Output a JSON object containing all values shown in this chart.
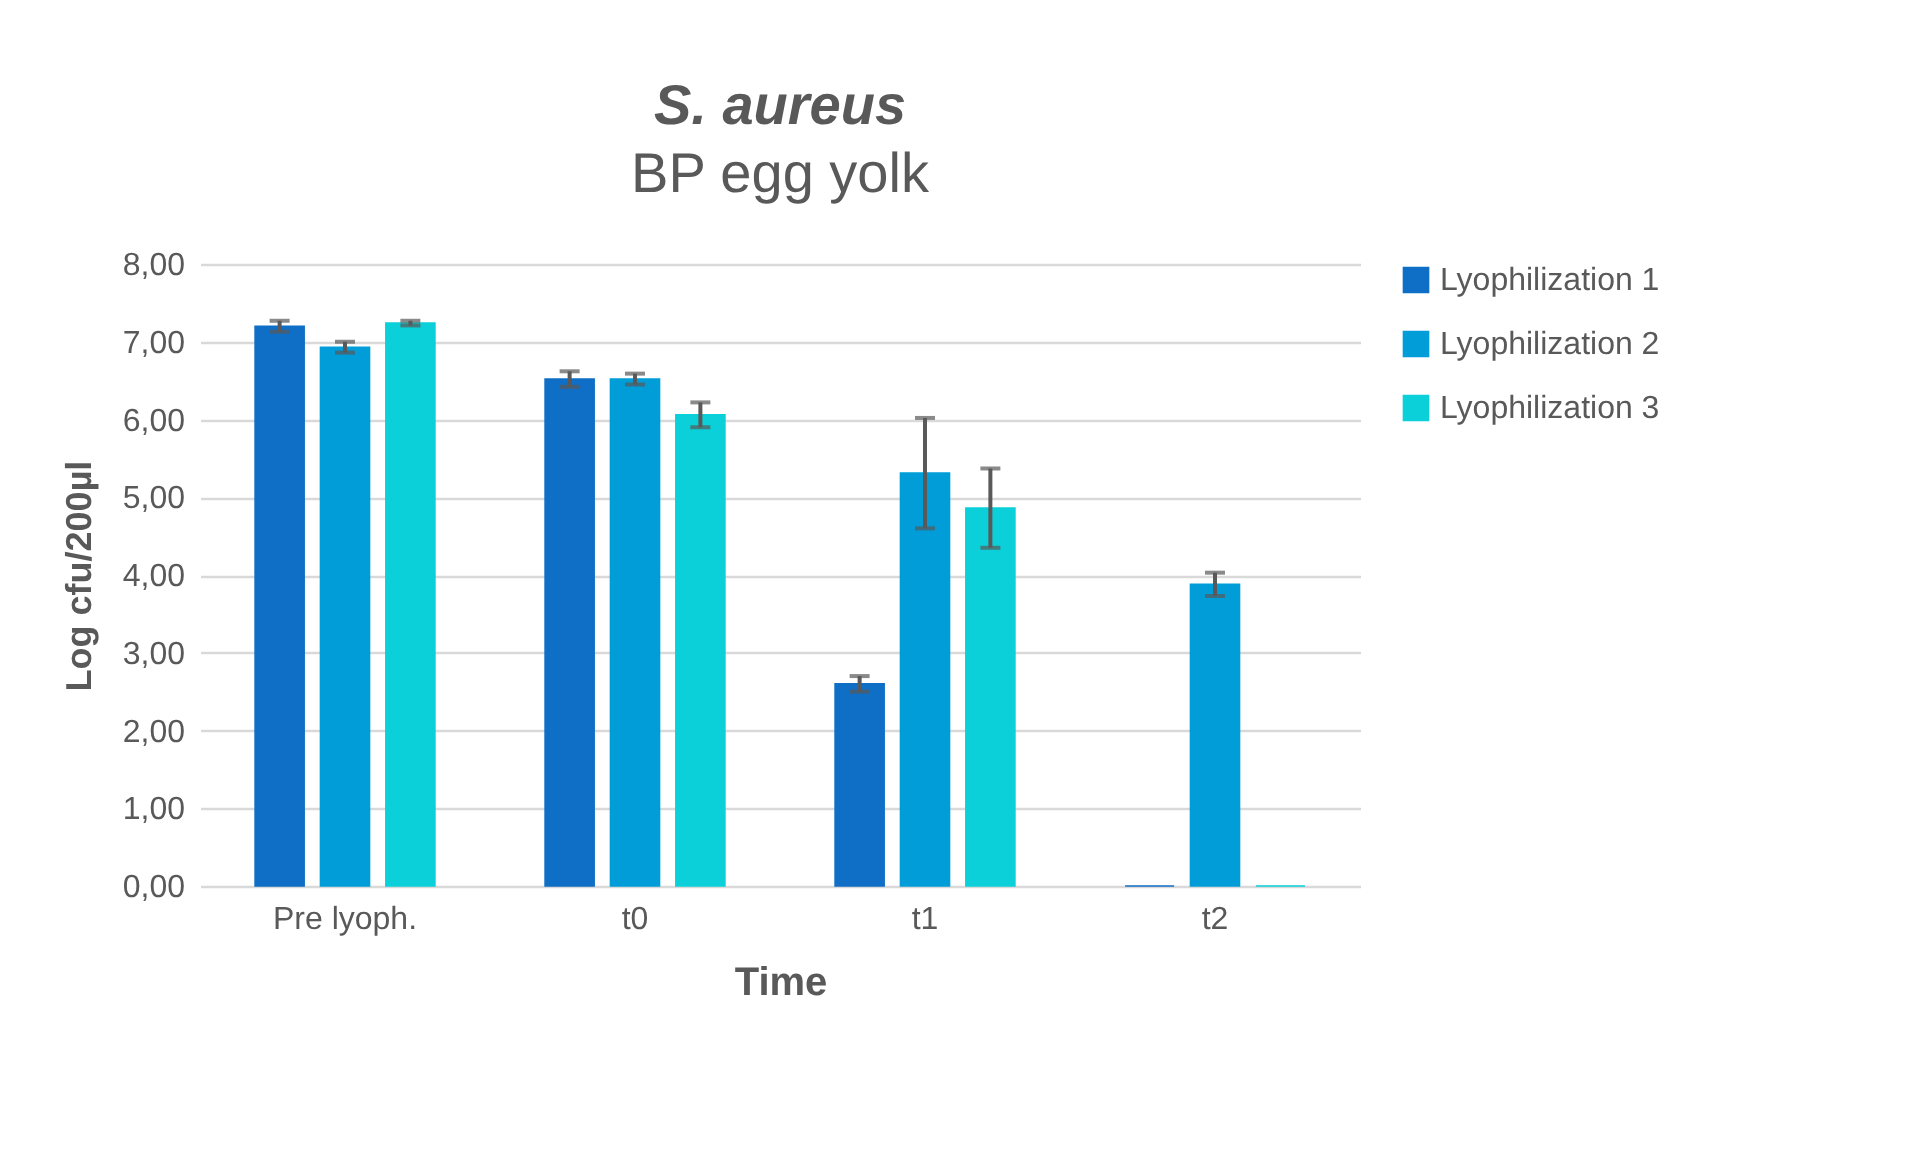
{
  "chart_data": {
    "type": "bar",
    "title": "S. aureus",
    "subtitle": "BP egg yolk",
    "xlabel": "Time",
    "ylabel": "Log cfu/200µl",
    "categories": [
      "Pre lyoph.",
      "t0",
      "t1",
      "t2"
    ],
    "series": [
      {
        "name": "Lyophilization 1",
        "color": "#0f6fc6",
        "values": [
          7.2,
          6.52,
          2.6,
          0
        ],
        "errors": [
          0.07,
          0.1,
          0.1,
          null
        ]
      },
      {
        "name": "Lyophilization 2",
        "color": "#009dd9",
        "values": [
          6.93,
          6.52,
          5.31,
          3.88
        ],
        "errors": [
          0.07,
          0.07,
          0.71,
          0.15
        ]
      },
      {
        "name": "Lyophilization 3",
        "color": "#0bd0d9",
        "values": [
          7.24,
          6.06,
          4.86,
          0
        ],
        "errors": [
          0.03,
          0.16,
          0.51,
          null
        ]
      }
    ],
    "ylim": [
      0,
      8
    ],
    "yticks": [
      {
        "value": 0,
        "label": "0,00"
      },
      {
        "value": 1,
        "label": "1,00"
      },
      {
        "value": 2,
        "label": "2,00"
      },
      {
        "value": 3,
        "label": "3,00"
      },
      {
        "value": 4,
        "label": "4,00"
      },
      {
        "value": 5,
        "label": "5,00"
      },
      {
        "value": 6,
        "label": "6,00"
      },
      {
        "value": 7,
        "label": "7,00"
      },
      {
        "value": 8,
        "label": "8,00"
      }
    ],
    "grid": "y",
    "legend": "right"
  }
}
